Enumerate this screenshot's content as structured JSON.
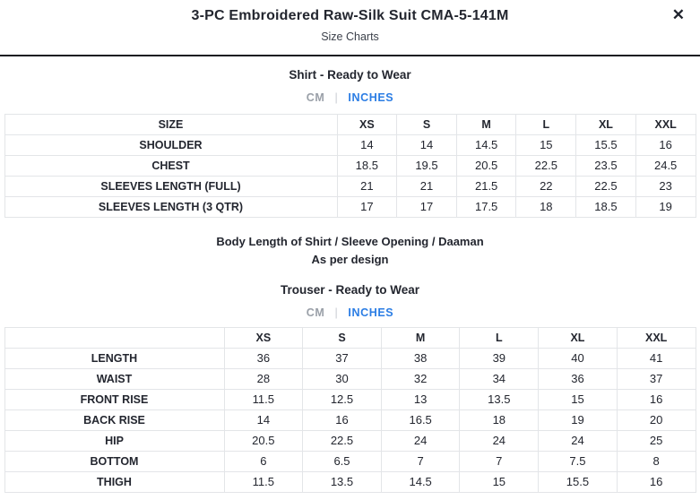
{
  "modal": {
    "title": "3-PC Embroidered Raw-Silk Suit CMA-5-141M",
    "subtitle": "Size Charts",
    "close_glyph": "✕"
  },
  "colors": {
    "accent_blue": "#2b7de4",
    "inactive_gray": "#9aa0a8",
    "text_dark": "#23262f",
    "table_border": "#e3e5e8",
    "header_divider": "#181b21"
  },
  "shirt_section": {
    "heading": "Shirt - Ready to Wear",
    "unit_toggle": {
      "cm": "CM",
      "separator": "|",
      "inches": "INCHES",
      "active": "INCHES"
    },
    "table": {
      "header": [
        "SIZE",
        "XS",
        "S",
        "M",
        "L",
        "XL",
        "XXL"
      ],
      "rows": [
        {
          "label": "SHOULDER",
          "values": [
            "14",
            "14",
            "14.5",
            "15",
            "15.5",
            "16"
          ]
        },
        {
          "label": "CHEST",
          "values": [
            "18.5",
            "19.5",
            "20.5",
            "22.5",
            "23.5",
            "24.5"
          ]
        },
        {
          "label": "SLEEVES LENGTH (FULL)",
          "values": [
            "21",
            "21",
            "21.5",
            "22",
            "22.5",
            "23"
          ]
        },
        {
          "label": "SLEEVES LENGTH (3 QTR)",
          "values": [
            "17",
            "17",
            "17.5",
            "18",
            "18.5",
            "19"
          ]
        }
      ]
    }
  },
  "note": {
    "line1": "Body Length of Shirt / Sleeve Opening / Daaman",
    "line2": "As per design"
  },
  "trouser_section": {
    "heading": "Trouser - Ready to Wear",
    "unit_toggle": {
      "cm": "CM",
      "separator": "|",
      "inches": "INCHES",
      "active": "INCHES"
    },
    "table": {
      "header": [
        "",
        "XS",
        "S",
        "M",
        "L",
        "XL",
        "XXL"
      ],
      "rows": [
        {
          "label": "LENGTH",
          "values": [
            "36",
            "37",
            "38",
            "39",
            "40",
            "41"
          ]
        },
        {
          "label": "WAIST",
          "values": [
            "28",
            "30",
            "32",
            "34",
            "36",
            "37"
          ]
        },
        {
          "label": "FRONT RISE",
          "values": [
            "11.5",
            "12.5",
            "13",
            "13.5",
            "15",
            "16"
          ]
        },
        {
          "label": "BACK RISE",
          "values": [
            "14",
            "16",
            "16.5",
            "18",
            "19",
            "20"
          ]
        },
        {
          "label": "HIP",
          "values": [
            "20.5",
            "22.5",
            "24",
            "24",
            "24",
            "25"
          ]
        },
        {
          "label": "BOTTOM",
          "values": [
            "6",
            "6.5",
            "7",
            "7",
            "7.5",
            "8"
          ]
        },
        {
          "label": "THIGH",
          "values": [
            "11.5",
            "13.5",
            "14.5",
            "15",
            "15.5",
            "16"
          ]
        }
      ]
    }
  }
}
